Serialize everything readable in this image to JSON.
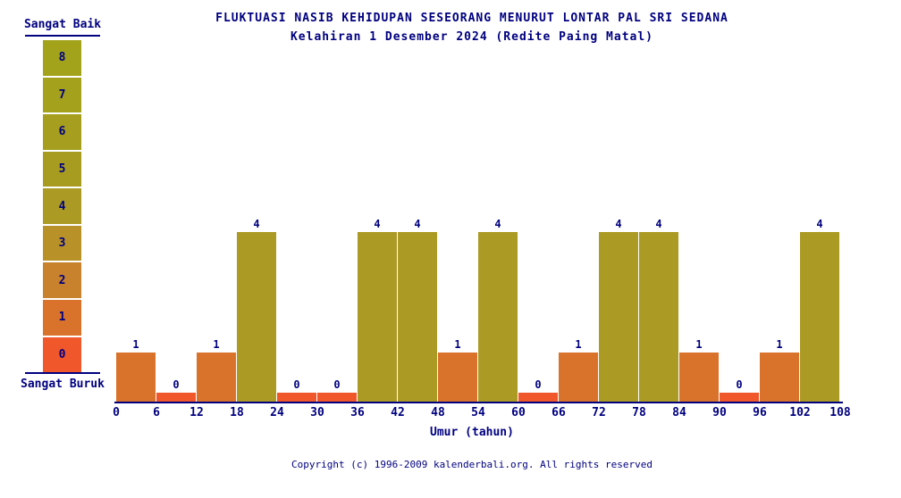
{
  "title": {
    "line1": "FLUKTUASI NASIB KEHIDUPAN SESEORANG MENURUT LONTAR PAL SRI SEDANA",
    "line2": "Kelahiran 1 Desember 2024 (Redite Paing Matal)"
  },
  "legend": {
    "top_label": "Sangat Baik",
    "bottom_label": "Sangat Buruk",
    "levels": [
      {
        "value": "8",
        "color": "#a2a31a"
      },
      {
        "value": "7",
        "color": "#a4a11c"
      },
      {
        "value": "6",
        "color": "#a69e1e"
      },
      {
        "value": "5",
        "color": "#a89c20"
      },
      {
        "value": "4",
        "color": "#ab9a23"
      },
      {
        "value": "3",
        "color": "#b89128"
      },
      {
        "value": "2",
        "color": "#c8812c"
      },
      {
        "value": "1",
        "color": "#d9732c"
      },
      {
        "value": "0",
        "color": "#f0572b"
      }
    ]
  },
  "chart_data": {
    "type": "bar",
    "title": "FLUKTUASI NASIB KEHIDUPAN SESEORANG MENURUT LONTAR PAL SRI SEDANA",
    "subtitle": "Kelahiran 1 Desember 2024 (Redite Paing Matal)",
    "xlabel": "Umur (tahun)",
    "categories": [
      "0-6",
      "6-12",
      "12-18",
      "18-24",
      "24-30",
      "30-36",
      "36-42",
      "42-48",
      "48-54",
      "54-60",
      "60-66",
      "66-72",
      "72-78",
      "78-84",
      "84-90",
      "90-96",
      "96-102",
      "102-108"
    ],
    "values": [
      1,
      0,
      1,
      4,
      0,
      0,
      4,
      4,
      1,
      4,
      0,
      1,
      4,
      4,
      1,
      0,
      1,
      4
    ],
    "x_ticks": [
      "0",
      "6",
      "12",
      "18",
      "24",
      "30",
      "36",
      "42",
      "48",
      "54",
      "60",
      "66",
      "72",
      "78",
      "84",
      "90",
      "96",
      "102",
      "108"
    ],
    "ylim": [
      0,
      8
    ],
    "grid": false,
    "legend_position": "left",
    "scale_best_label": "Sangat Baik",
    "scale_worst_label": "Sangat Buruk",
    "value_colors": {
      "0": "#f0572b",
      "1": "#d9732c",
      "4": "#ab9a23"
    }
  },
  "footer": {
    "copyright": "Copyright (c) 1996-2009 kalenderbali.org. All rights reserved"
  },
  "colors": {
    "text": "#000080",
    "background": "#ffffff",
    "axis": "#000080"
  }
}
